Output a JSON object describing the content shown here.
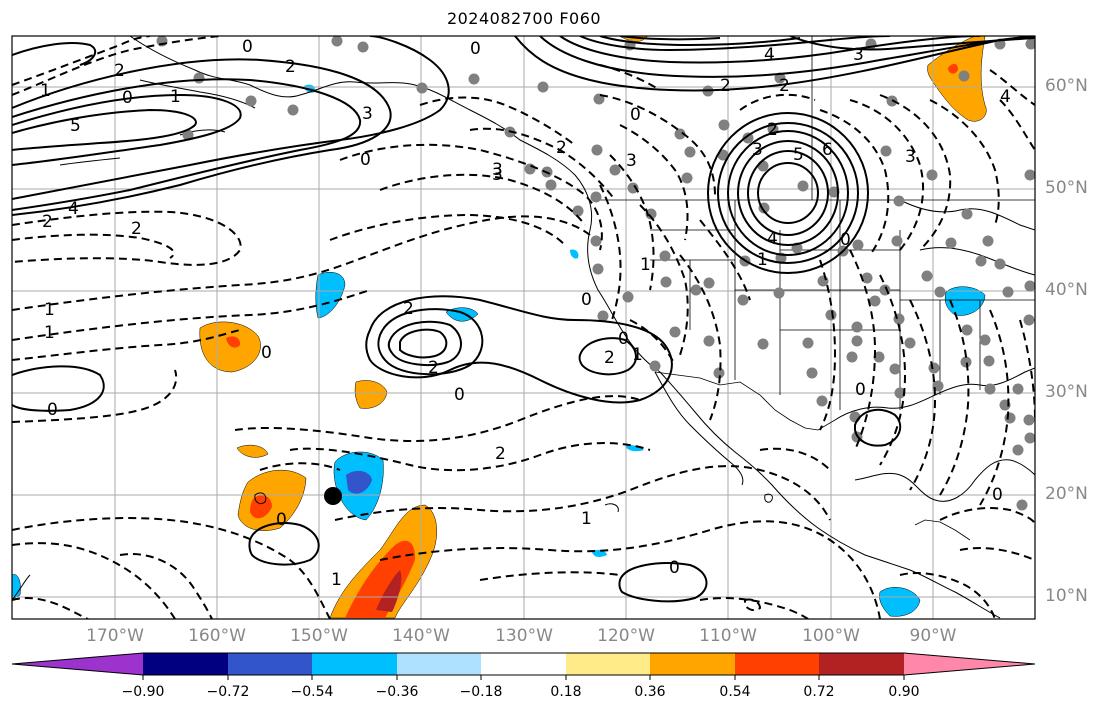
{
  "title": "2024082700 F060",
  "lat_labels": [
    "60°N",
    "50°N",
    "40°N",
    "30°N",
    "20°N",
    "10°N"
  ],
  "lon_labels": [
    "170°W",
    "160°W",
    "150°W",
    "140°W",
    "130°W",
    "120°W",
    "110°W",
    "100°W",
    "90°W"
  ],
  "colorbar": {
    "ticks": [
      "−0.90",
      "−0.72",
      "−0.54",
      "−0.36",
      "−0.18",
      "0.18",
      "0.36",
      "0.54",
      "0.72",
      "0.90"
    ],
    "colors": [
      "#9b33cc",
      "#000080",
      "#3355cc",
      "#00bfff",
      "#aee0ff",
      "#ffffff",
      "#ffeb88",
      "#ffa500",
      "#ff4000",
      "#b22222",
      "#ff88aa"
    ]
  },
  "contour_labels": [
    "2",
    "1",
    "0",
    "1",
    "5",
    "4",
    "2",
    "2",
    "2",
    "0",
    "3",
    "0",
    "3",
    "0",
    "2",
    "3",
    "0",
    "4",
    "3",
    "2",
    "3",
    "5",
    "6",
    "4",
    "1",
    "2",
    "3",
    "2",
    "0",
    "2",
    "1",
    "1",
    "0",
    "2",
    "0",
    "0",
    "0",
    "2",
    "1",
    "1",
    "0",
    "0",
    "1",
    "0",
    "0",
    "1",
    "0",
    "2",
    "3",
    "4"
  ],
  "colors": {
    "land_outline": "#000000",
    "grid": "#aaaaaa",
    "station_dot": "#808080"
  }
}
